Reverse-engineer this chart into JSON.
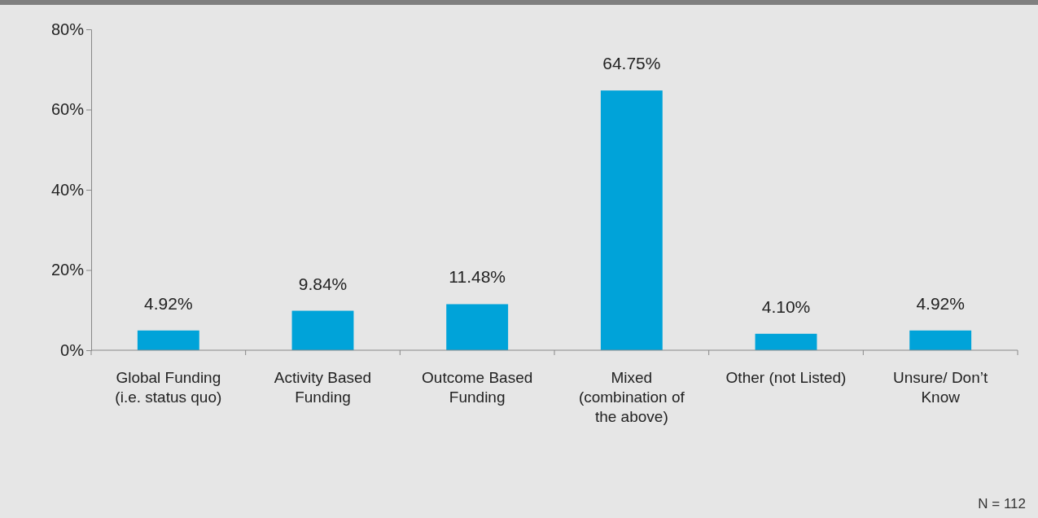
{
  "chart_data": {
    "type": "bar",
    "categories": [
      "Global Funding (i.e. status quo)",
      "Activity Based Funding",
      "Outcome Based Funding",
      "Mixed (combination of the above)",
      "Other (not Listed)",
      "Unsure/ Don’t Know"
    ],
    "values": [
      4.92,
      9.84,
      11.48,
      64.75,
      4.1,
      4.92
    ],
    "value_labels": [
      "4.92%",
      "9.84%",
      "11.48%",
      "64.75%",
      "4.10%",
      "4.92%"
    ],
    "color": "#00a3d9",
    "ylim": [
      0,
      80
    ],
    "yticks": [
      {
        "value": 0,
        "label": "0%"
      },
      {
        "value": 20,
        "label": "20%"
      },
      {
        "value": 40,
        "label": "40%"
      },
      {
        "value": 60,
        "label": "60%"
      },
      {
        "value": 80,
        "label": "80%"
      }
    ],
    "grid": false,
    "annotations": [
      "N = 112"
    ]
  }
}
